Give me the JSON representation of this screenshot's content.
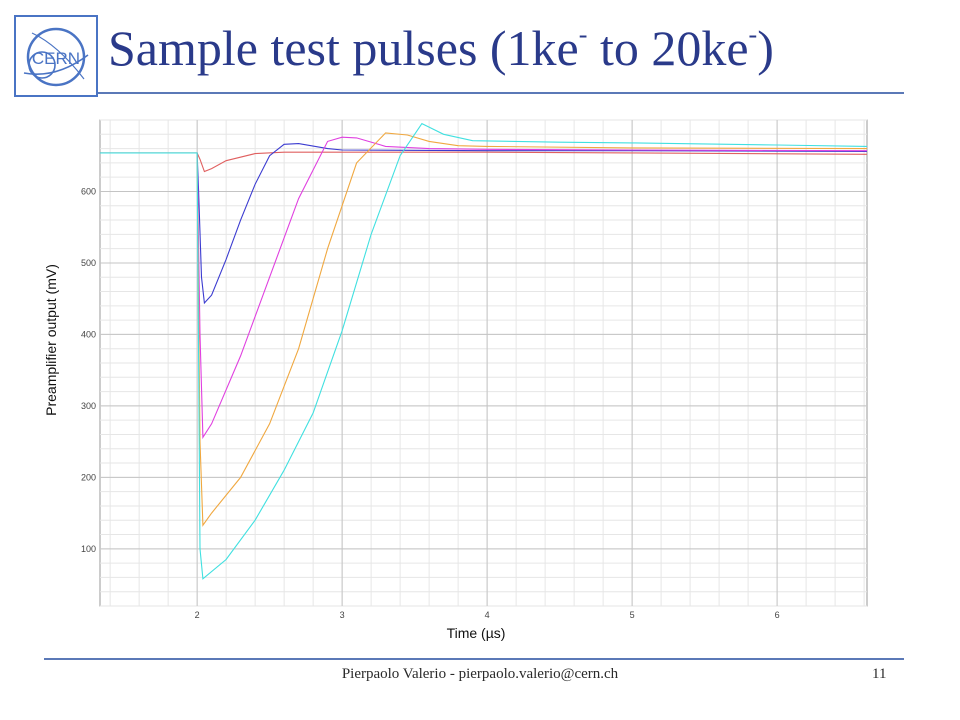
{
  "slide": {
    "title_main": "Sample test pulses (1ke",
    "title_sup1": "-",
    "title_mid": " to 20ke",
    "title_sup2": "-",
    "title_end": ")",
    "logo_text": "CERN",
    "footer": "Pierpaolo Valerio - pierpaolo.valerio@cern.ch",
    "page_number": "11"
  },
  "colors": {
    "accent": "#5b79b7",
    "title": "#2a3a8a"
  },
  "chart_data": {
    "type": "line",
    "xlabel": "Time (µs)",
    "ylabel": "Preamplifier output (mV)",
    "xlim": [
      1.33,
      6.62
    ],
    "ylim": [
      20,
      700
    ],
    "xticks": [
      2,
      3,
      4,
      5,
      6
    ],
    "yticks": [
      100,
      200,
      300,
      400,
      500,
      600
    ],
    "grid": true,
    "series": [
      {
        "color": "#e06060",
        "points": [
          [
            1.33,
            654
          ],
          [
            2.0,
            654
          ],
          [
            2.02,
            645
          ],
          [
            2.05,
            628
          ],
          [
            2.1,
            632
          ],
          [
            2.2,
            643
          ],
          [
            2.4,
            653
          ],
          [
            2.6,
            655
          ],
          [
            3.0,
            655
          ],
          [
            4.0,
            655
          ],
          [
            5.0,
            654
          ],
          [
            6.62,
            652
          ]
        ]
      },
      {
        "color": "#3b3bd0",
        "points": [
          [
            2.0,
            654
          ],
          [
            2.01,
            600
          ],
          [
            2.03,
            480
          ],
          [
            2.05,
            444
          ],
          [
            2.1,
            455
          ],
          [
            2.2,
            505
          ],
          [
            2.3,
            560
          ],
          [
            2.4,
            610
          ],
          [
            2.5,
            650
          ],
          [
            2.6,
            666
          ],
          [
            2.7,
            667
          ],
          [
            2.9,
            660
          ],
          [
            3.0,
            658
          ],
          [
            4.0,
            657
          ],
          [
            5.0,
            657
          ],
          [
            6.62,
            656
          ]
        ]
      },
      {
        "color": "#e040e0",
        "points": [
          [
            2.0,
            654
          ],
          [
            2.02,
            400
          ],
          [
            2.04,
            256
          ],
          [
            2.1,
            275
          ],
          [
            2.3,
            370
          ],
          [
            2.5,
            480
          ],
          [
            2.7,
            590
          ],
          [
            2.9,
            670
          ],
          [
            3.0,
            676
          ],
          [
            3.1,
            675
          ],
          [
            3.3,
            663
          ],
          [
            3.6,
            660
          ],
          [
            4.0,
            659
          ],
          [
            5.0,
            658
          ],
          [
            6.62,
            657
          ]
        ]
      },
      {
        "color": "#f0a840",
        "points": [
          [
            2.0,
            654
          ],
          [
            2.02,
            250
          ],
          [
            2.04,
            133
          ],
          [
            2.1,
            150
          ],
          [
            2.3,
            200
          ],
          [
            2.5,
            275
          ],
          [
            2.7,
            380
          ],
          [
            2.9,
            520
          ],
          [
            3.1,
            640
          ],
          [
            3.3,
            682
          ],
          [
            3.45,
            679
          ],
          [
            3.6,
            670
          ],
          [
            3.8,
            664
          ],
          [
            4.0,
            663
          ],
          [
            5.0,
            661
          ],
          [
            6.62,
            660
          ]
        ]
      },
      {
        "color": "#40e0e0",
        "points": [
          [
            1.33,
            654
          ],
          [
            2.0,
            654
          ],
          [
            2.02,
            100
          ],
          [
            2.04,
            58
          ],
          [
            2.2,
            85
          ],
          [
            2.4,
            140
          ],
          [
            2.6,
            210
          ],
          [
            2.8,
            290
          ],
          [
            3.0,
            405
          ],
          [
            3.2,
            540
          ],
          [
            3.4,
            650
          ],
          [
            3.55,
            695
          ],
          [
            3.7,
            680
          ],
          [
            3.9,
            671
          ],
          [
            4.5,
            669
          ],
          [
            5.0,
            668
          ],
          [
            6.0,
            665
          ],
          [
            6.62,
            663
          ]
        ]
      }
    ]
  }
}
